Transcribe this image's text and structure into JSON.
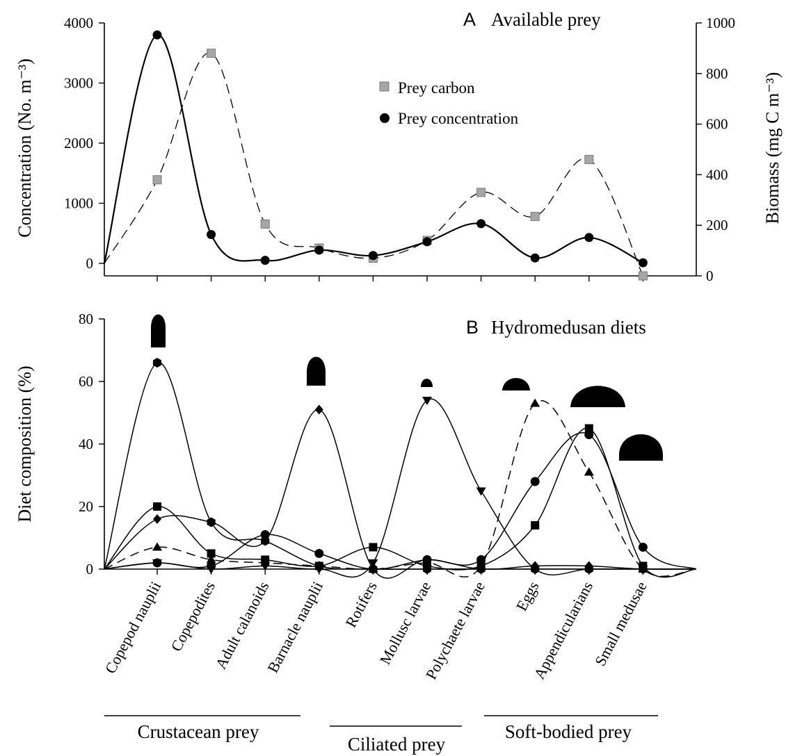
{
  "chart_data": [
    {
      "panel": "A",
      "type": "line",
      "title_letter": "A",
      "title": "Available prey",
      "ylabel_left": "Concentration (No. m⁻³)",
      "ylabel_right": "Biomass (mg C m⁻³)",
      "ylim_left": [
        -200,
        4000
      ],
      "ylim_right": [
        0,
        1000
      ],
      "yticks_left": [
        0,
        1000,
        2000,
        3000,
        4000
      ],
      "yticks_right": [
        0,
        200,
        400,
        600,
        800,
        1000
      ],
      "legend_position": "upper-middle",
      "categories": [
        "Copepod nauplii",
        "Copepodites",
        "Adult calanoids",
        "Barnacle nauplii",
        "Rotifers",
        "Mollusc larvae",
        "Polychaete larvae",
        "Eggs",
        "Appendicularians",
        "Small medusae"
      ],
      "series": [
        {
          "name": "Prey carbon",
          "axis": "right",
          "marker": "square",
          "color": "#a6a6a6",
          "line": "dashed",
          "values": [
            380,
            880,
            205,
            110,
            70,
            140,
            330,
            235,
            460,
            0
          ]
        },
        {
          "name": "Prey concentration",
          "axis": "left",
          "marker": "circle",
          "color": "#000000",
          "line": "solid",
          "values": [
            3800,
            480,
            50,
            220,
            130,
            360,
            660,
            90,
            430,
            10
          ]
        }
      ]
    },
    {
      "panel": "B",
      "type": "line",
      "title_letter": "B",
      "title": "Hydromedusan diets",
      "ylabel": "Diet composition (%)",
      "ylim": [
        0,
        80
      ],
      "yticks": [
        0,
        20,
        40,
        60,
        80
      ],
      "categories": [
        "Copepod nauplii",
        "Copepodites",
        "Adult calanoids",
        "Barnacle nauplii",
        "Rotifers",
        "Mollusc larvae",
        "Polychaete larvae",
        "Eggs",
        "Appendicularians",
        "Small medusae"
      ],
      "series": [
        {
          "marker": "hexagon",
          "line": "solid",
          "values": [
            66,
            15,
            9,
            1,
            0,
            0,
            0,
            0,
            0,
            0
          ]
        },
        {
          "marker": "diamond",
          "line": "solid",
          "values": [
            16,
            15,
            9,
            51,
            0,
            3,
            0,
            1,
            1,
            0
          ]
        },
        {
          "marker": "triangle-down",
          "line": "solid",
          "values": [
            2,
            0,
            1,
            0,
            2,
            54,
            25,
            0,
            0,
            0
          ]
        },
        {
          "marker": "triangle-up",
          "line": "dashed",
          "values": [
            7,
            3,
            2,
            1,
            0,
            2,
            1,
            53,
            31,
            0
          ]
        },
        {
          "marker": "square",
          "line": "solid",
          "values": [
            20,
            5,
            3,
            1,
            7,
            1,
            1,
            14,
            45,
            1
          ]
        },
        {
          "marker": "circle",
          "line": "solid",
          "values": [
            2,
            1,
            11,
            5,
            0,
            3,
            3,
            28,
            43,
            7
          ]
        }
      ],
      "medusa_silhouettes": [
        "tall-bullet",
        "bell",
        "small-dome",
        "flat-dome",
        "wide-flat-dome",
        "medium-dome"
      ]
    }
  ],
  "groups": [
    {
      "label": "Crustacean prey"
    },
    {
      "label": "Ciliated prey"
    },
    {
      "label": "Soft-bodied prey"
    }
  ]
}
